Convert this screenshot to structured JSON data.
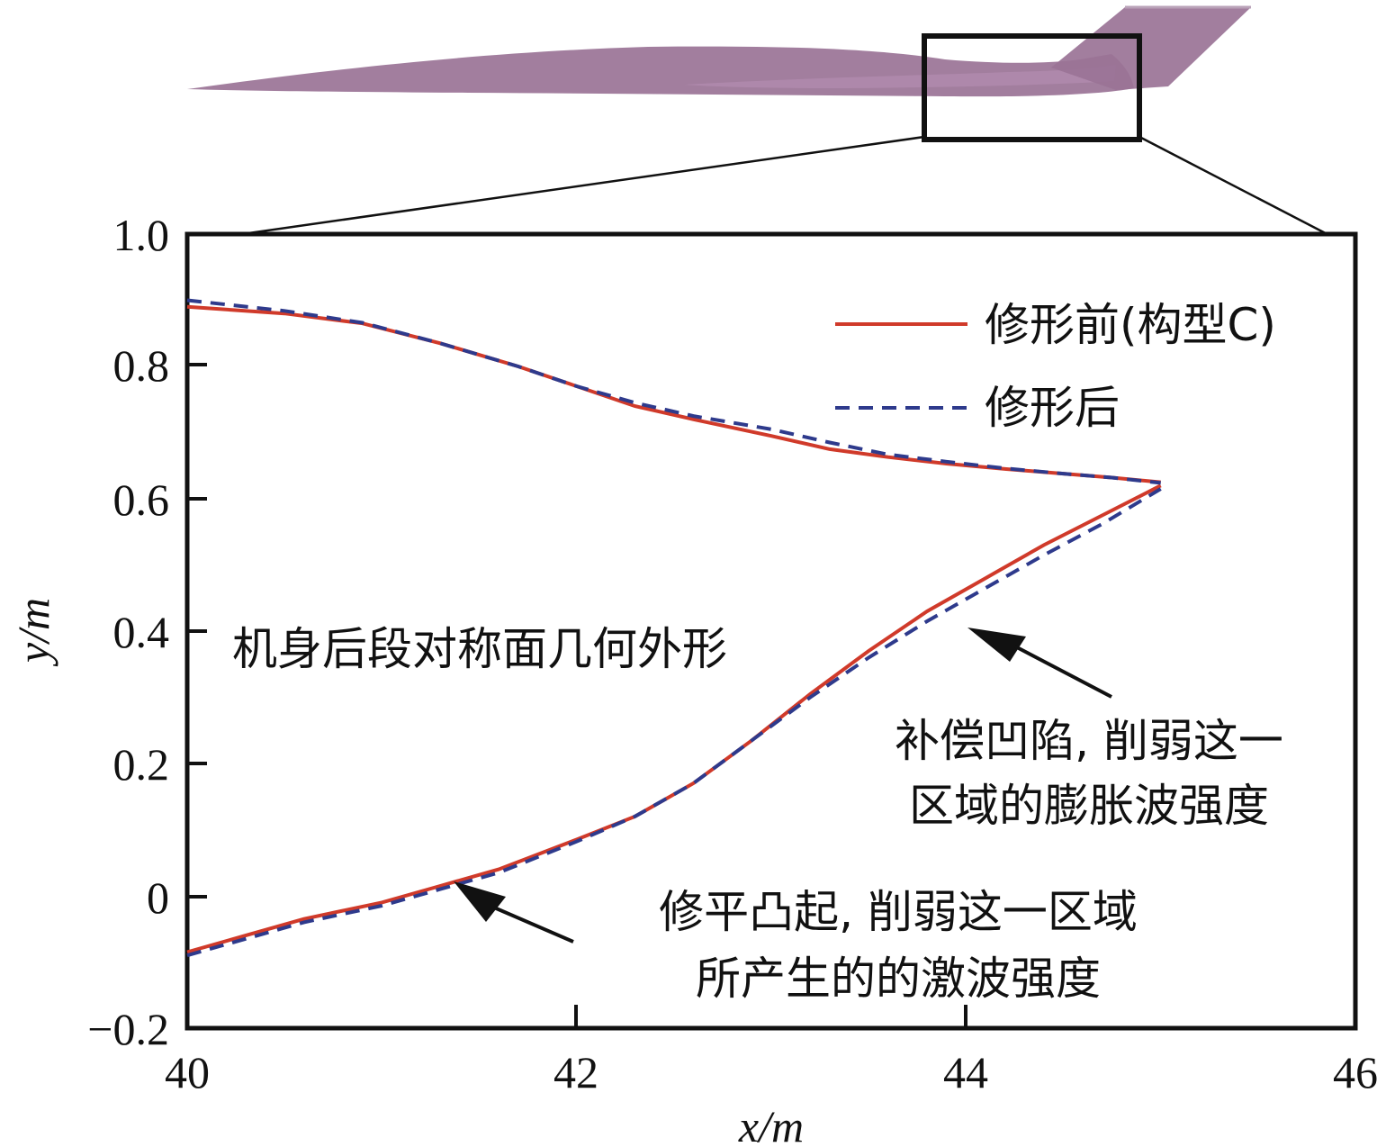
{
  "chart_data": {
    "type": "line",
    "xlabel": "x/m",
    "ylabel": "y/m",
    "xlim": [
      40,
      46
    ],
    "ylim": [
      -0.2,
      1.0
    ],
    "x_ticks": [
      "40",
      "42",
      "44",
      "46"
    ],
    "y_ticks": [
      "1.0",
      "0.8",
      "0.6",
      "0.4",
      "0.2",
      "0",
      "−0.2"
    ],
    "annotation_main": "机身后段对称面几何外形",
    "annotation_upper": [
      "补偿凹陷, 削弱这一",
      "区域的膨胀波强度"
    ],
    "annotation_lower": [
      "修平凸起, 削弱这一区域",
      "所产生的的激波强度"
    ],
    "series": [
      {
        "name": "修形前(构型C)",
        "style": "solid",
        "color": "#d03a2a",
        "upper": {
          "x": [
            40.0,
            40.5,
            40.9,
            41.3,
            41.7,
            42.0,
            42.3,
            42.6,
            43.0,
            43.3,
            43.6,
            43.9,
            44.2,
            44.5,
            44.75,
            45.0
          ],
          "y": [
            0.89,
            0.88,
            0.865,
            0.835,
            0.8,
            0.77,
            0.74,
            0.72,
            0.695,
            0.675,
            0.663,
            0.653,
            0.645,
            0.638,
            0.632,
            0.625
          ]
        },
        "lower": {
          "x": [
            40.0,
            40.3,
            40.6,
            41.0,
            41.3,
            41.6,
            42.0,
            42.3,
            42.6,
            42.9,
            43.2,
            43.5,
            43.8,
            44.1,
            44.4,
            44.7,
            45.0
          ],
          "y": [
            -0.085,
            -0.06,
            -0.035,
            -0.01,
            0.015,
            0.04,
            0.085,
            0.12,
            0.17,
            0.235,
            0.305,
            0.37,
            0.43,
            0.48,
            0.53,
            0.575,
            0.62
          ]
        }
      },
      {
        "name": "修形后",
        "style": "dashed",
        "color": "#2e3a8c",
        "upper": {
          "x": [
            40.0,
            40.5,
            40.9,
            41.3,
            41.7,
            42.0,
            42.3,
            42.6,
            43.0,
            43.3,
            43.6,
            43.9,
            44.2,
            44.5,
            44.75,
            45.0
          ],
          "y": [
            0.9,
            0.884,
            0.866,
            0.835,
            0.8,
            0.77,
            0.745,
            0.725,
            0.705,
            0.685,
            0.667,
            0.656,
            0.646,
            0.638,
            0.632,
            0.624
          ]
        },
        "lower": {
          "x": [
            40.0,
            40.3,
            40.6,
            41.0,
            41.3,
            41.6,
            42.0,
            42.3,
            42.6,
            42.9,
            43.2,
            43.5,
            43.8,
            44.1,
            44.4,
            44.7,
            45.0
          ],
          "y": [
            -0.09,
            -0.065,
            -0.04,
            -0.015,
            0.01,
            0.035,
            0.082,
            0.12,
            0.17,
            0.235,
            0.3,
            0.36,
            0.415,
            0.465,
            0.515,
            0.562,
            0.615
          ]
        }
      }
    ]
  }
}
